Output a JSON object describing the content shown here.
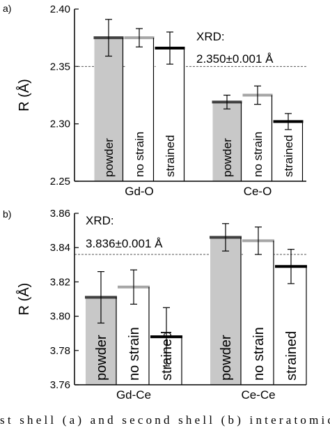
{
  "caption": "st shell (a) and second shell (b) interatomic dis",
  "styles": {
    "powder": {
      "fill": "#c8c8c8",
      "stroke": "#404040"
    },
    "no strain": {
      "fill": "#ffffff",
      "stroke": "#a6a6a6"
    },
    "strained": {
      "fill": "#ffffff",
      "stroke": "#000000"
    }
  },
  "chart_data": [
    {
      "panel_label": "a)",
      "type": "bar",
      "ylabel": "R (Å)",
      "ylim": [
        2.25,
        2.4
      ],
      "yticks": [
        "2.25",
        "2.30",
        "2.35",
        "2.40"
      ],
      "categories": [
        "Gd-O",
        "Ce-O"
      ],
      "series": [
        {
          "name": "powder",
          "values": [
            2.375,
            2.319
          ],
          "errors": [
            0.016,
            0.006
          ]
        },
        {
          "name": "no strain",
          "values": [
            2.375,
            2.325
          ],
          "errors": [
            0.008,
            0.008
          ]
        },
        {
          "name": "strained",
          "values": [
            2.366,
            2.302
          ],
          "errors": [
            0.014,
            0.007
          ]
        }
      ],
      "reference_line": {
        "value": 2.35,
        "label_line1": "XRD:",
        "label_line2": "2.350±0.001 Å"
      }
    },
    {
      "panel_label": "b)",
      "type": "bar",
      "ylabel": "R (Å)",
      "ylim": [
        3.76,
        3.86
      ],
      "yticks": [
        "3.76",
        "3.78",
        "3.80",
        "3.82",
        "3.84",
        "3.86"
      ],
      "categories": [
        "Gd-Ce",
        "Ce-Ce"
      ],
      "series": [
        {
          "name": "powder",
          "values": [
            3.811,
            3.846
          ],
          "errors": [
            0.015,
            0.008
          ]
        },
        {
          "name": "no strain",
          "values": [
            3.817,
            3.844
          ],
          "errors": [
            0.01,
            0.008
          ]
        },
        {
          "name": "strained",
          "values": [
            3.788,
            3.829
          ],
          "errors": [
            0.017,
            0.01
          ]
        }
      ],
      "reference_line": {
        "value": 3.836,
        "label_line1": "XRD:",
        "label_line2": "3.836±0.001 Å"
      }
    }
  ]
}
